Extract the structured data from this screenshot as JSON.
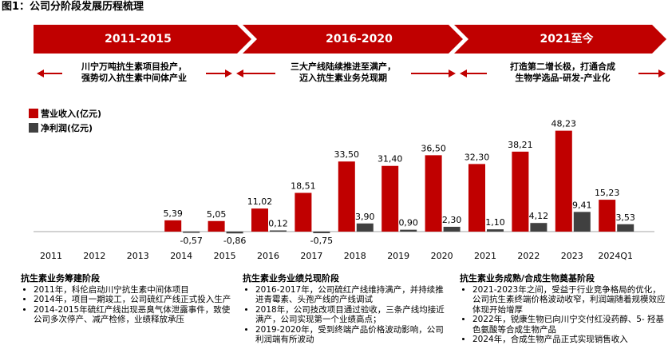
{
  "figure_title": "图1：公司分阶段发展历程梳理",
  "phases": [
    {
      "label": "2011-2015",
      "desc": [
        "川宁万吨抗生素项目投产，",
        "强势切入抗生素中间体产业"
      ]
    },
    {
      "label": "2016-2020",
      "desc": [
        "三大产线陆续推进至满产，",
        "迈入抗生素业务兑现期"
      ]
    },
    {
      "label": "2021至今",
      "desc": [
        "打造第二增长极，打通合成",
        "生物学选品-研发-产业化"
      ]
    }
  ],
  "colors": {
    "revenue": "#c00000",
    "profit": "#404040",
    "accent": "#c00000"
  },
  "chart_data": {
    "type": "bar",
    "categories": [
      "2011",
      "2012",
      "2013",
      "2014",
      "2015",
      "2016",
      "2017",
      "2018",
      "2019",
      "2020",
      "2021",
      "2022",
      "2023",
      "2024Q1"
    ],
    "series": [
      {
        "name": "营业收入(亿元)",
        "values": [
          null,
          null,
          null,
          5.39,
          5.05,
          11.02,
          18.51,
          33.5,
          31.4,
          36.5,
          32.3,
          38.21,
          48.23,
          15.23
        ],
        "labels": [
          "",
          "",
          "",
          "5,39",
          "5,05",
          "11,02",
          "18,51",
          "33,50",
          "31,40",
          "36,50",
          "32,30",
          "38,21",
          "48,23",
          "15,23"
        ]
      },
      {
        "name": "净利润(亿元)",
        "values": [
          null,
          null,
          null,
          -0.57,
          -0.86,
          0.12,
          -0.75,
          3.9,
          0.9,
          2.3,
          1.1,
          4.12,
          9.41,
          3.53
        ],
        "labels": [
          "",
          "",
          "",
          "-0,57",
          "-0,86",
          "0,12",
          "-0,75",
          "3,90",
          "0,90",
          "2,30",
          "1,10",
          "4,12",
          "9,41",
          "3,53"
        ]
      }
    ],
    "ylim": [
      -2,
      50
    ]
  },
  "sections": [
    {
      "title": "抗生素业务筹建阶段",
      "items": [
        "2011年，科伦启动川宁抗生素中间体项目",
        "2014年，项目一期竣工，公司硫红产线正式投入生产",
        "2014-2015年硫红产线出现恶臭气体泄露事件，致使公司多次停产、减产检修，业绩释放承压"
      ]
    },
    {
      "title": "抗生素业务业绩兑现阶段",
      "items": [
        "2016-2017年，公司硫红产线维持满产，并持续推进青霉素、头孢产线的产线调试",
        "2018年，公司技改项目通过验收，三条产线均接近满产，公司实现第一个业绩高点；",
        "2019-2020年，受到终端产品价格波动影响，公司利润端有所波动"
      ]
    },
    {
      "title": "抗生素业务成熟/合成生物奠基阶段",
      "items": [
        "2021-2023年之间，受益于行业竞争格局的优化，公司抗生素终端价格波动收窄，利润端随着规模效应体现开始增厚",
        "2022年，锐康生物已向川宁交付红没药醇、5- 羟基色氨酸等合成生物产品",
        "2024年，合成生物产品正式实现销售收入"
      ]
    }
  ]
}
